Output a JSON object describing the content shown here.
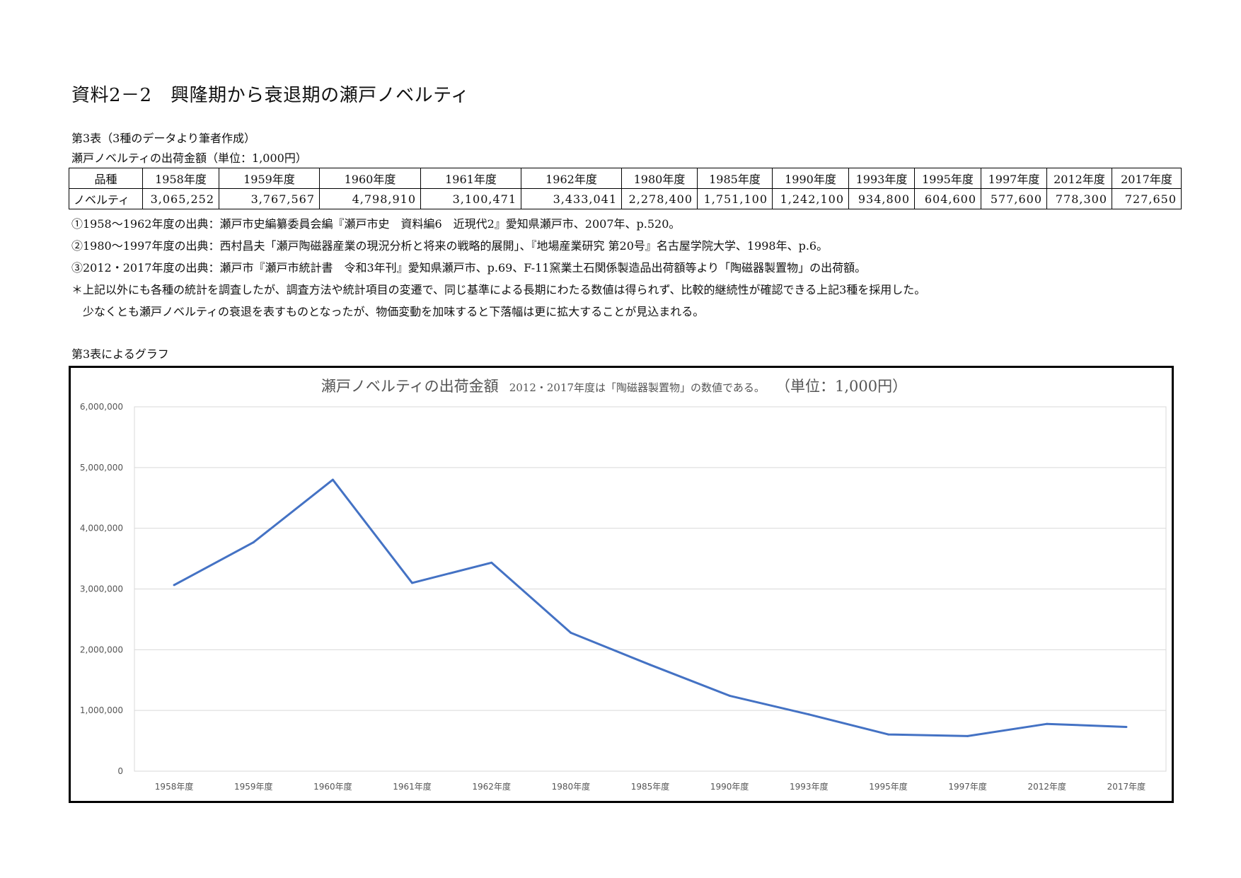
{
  "heading": "資料2－2　興隆期から衰退期の瀬戸ノベルティ",
  "table_caption": "第3表（3種のデータより筆者作成）",
  "table_title": "瀬戸ノベルティの出荷金額（単位：1,000円）",
  "table": {
    "row_header_label": "品種",
    "row_label": "ノベルティ",
    "years": [
      "1958年度",
      "1959年度",
      "1960年度",
      "1961年度",
      "1962年度",
      "1980年度",
      "1985年度",
      "1990年度",
      "1993年度",
      "1995年度",
      "1997年度",
      "2012年度",
      "2017年度"
    ],
    "values": [
      "3,065,252",
      "3,767,567",
      "4,798,910",
      "3,100,471",
      "3,433,041",
      "2,278,400",
      "1,751,100",
      "1,242,100",
      "934,800",
      "604,600",
      "577,600",
      "778,300",
      "727,650"
    ]
  },
  "sources": [
    "①1958～1962年度の出典：瀬戸市史編纂委員会編『瀬戸市史　資料編6　近現代2』愛知県瀬戸市、2007年、p.520。",
    "②1980～1997年度の出典：西村昌夫「瀬戸陶磁器産業の現況分析と将来の戦略的展開」、『地場産業研究 第20号』名古屋学院大学、1998年、p.6。",
    "③2012・2017年度の出典：瀬戸市『瀬戸市統計書　令和3年刊』愛知県瀬戸市、p.69、F-11窯業土石関係製造品出荷額等より「陶磁器製置物」の出荷額。"
  ],
  "notes": [
    "＊上記以外にも各種の統計を調査したが、調査方法や統計項目の変遷で、同じ基準による長期にわたる数値は得られず、比較的継続性が確認できる上記3種を採用した。",
    "　少なくとも瀬戸ノベルティの衰退を表すものとなったが、物価変動を加味すると下落幅は更に拡大することが見込まれる。"
  ],
  "graph_caption": "第3表によるグラフ",
  "chart_data": {
    "type": "line",
    "title": "瀬戸ノベルティの出荷金額",
    "subtitle": "2012・2017年度は「陶磁器製置物」の数値である。",
    "unit_note": "（単位：1,000円）",
    "categories": [
      "1958年度",
      "1959年度",
      "1960年度",
      "1961年度",
      "1962年度",
      "1980年度",
      "1985年度",
      "1990年度",
      "1993年度",
      "1995年度",
      "1997年度",
      "2012年度",
      "2017年度"
    ],
    "values": [
      3065252,
      3767567,
      4798910,
      3100471,
      3433041,
      2278400,
      1751100,
      1242100,
      934800,
      604600,
      577600,
      778300,
      727650
    ],
    "ylim": [
      0,
      6000000
    ],
    "yticks": [
      "0",
      "1,000,000",
      "2,000,000",
      "3,000,000",
      "4,000,000",
      "5,000,000",
      "6,000,000"
    ],
    "grid": true,
    "legend": "none",
    "line_color": "#4472C4",
    "grid_color": "#d9d9d9"
  }
}
